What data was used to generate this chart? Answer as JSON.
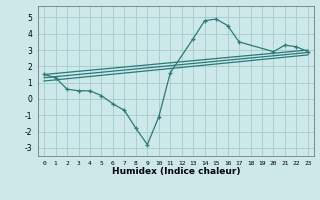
{
  "line_color": "#2a7a7a",
  "bg_color": "#cce8e8",
  "grid_color": "#aacece",
  "xlabel": "Humidex (Indice chaleur)",
  "xlim": [
    -0.5,
    23.5
  ],
  "ylim": [
    -3.5,
    5.7
  ],
  "yticks": [
    -3,
    -2,
    -1,
    0,
    1,
    2,
    3,
    4,
    5
  ],
  "xticks": [
    0,
    1,
    2,
    3,
    4,
    5,
    6,
    7,
    8,
    9,
    10,
    11,
    12,
    13,
    14,
    15,
    16,
    17,
    18,
    19,
    20,
    21,
    22,
    23
  ],
  "curve1_x": [
    0,
    1,
    2,
    3,
    4,
    5,
    6,
    7,
    8,
    9,
    10,
    11,
    13,
    14,
    15,
    16,
    17,
    20,
    21,
    22,
    23
  ],
  "curve1_y": [
    1.5,
    1.3,
    0.6,
    0.5,
    0.5,
    0.2,
    -0.3,
    -0.7,
    -1.8,
    -2.8,
    -1.1,
    1.6,
    3.7,
    4.8,
    4.9,
    4.5,
    3.5,
    2.9,
    3.3,
    3.2,
    2.9
  ],
  "line2_x": [
    0,
    23
  ],
  "line2_y": [
    1.5,
    3.0
  ],
  "line3_x": [
    0,
    23
  ],
  "line3_y": [
    1.3,
    2.85
  ],
  "line4_x": [
    0,
    23
  ],
  "line4_y": [
    1.1,
    2.7
  ]
}
